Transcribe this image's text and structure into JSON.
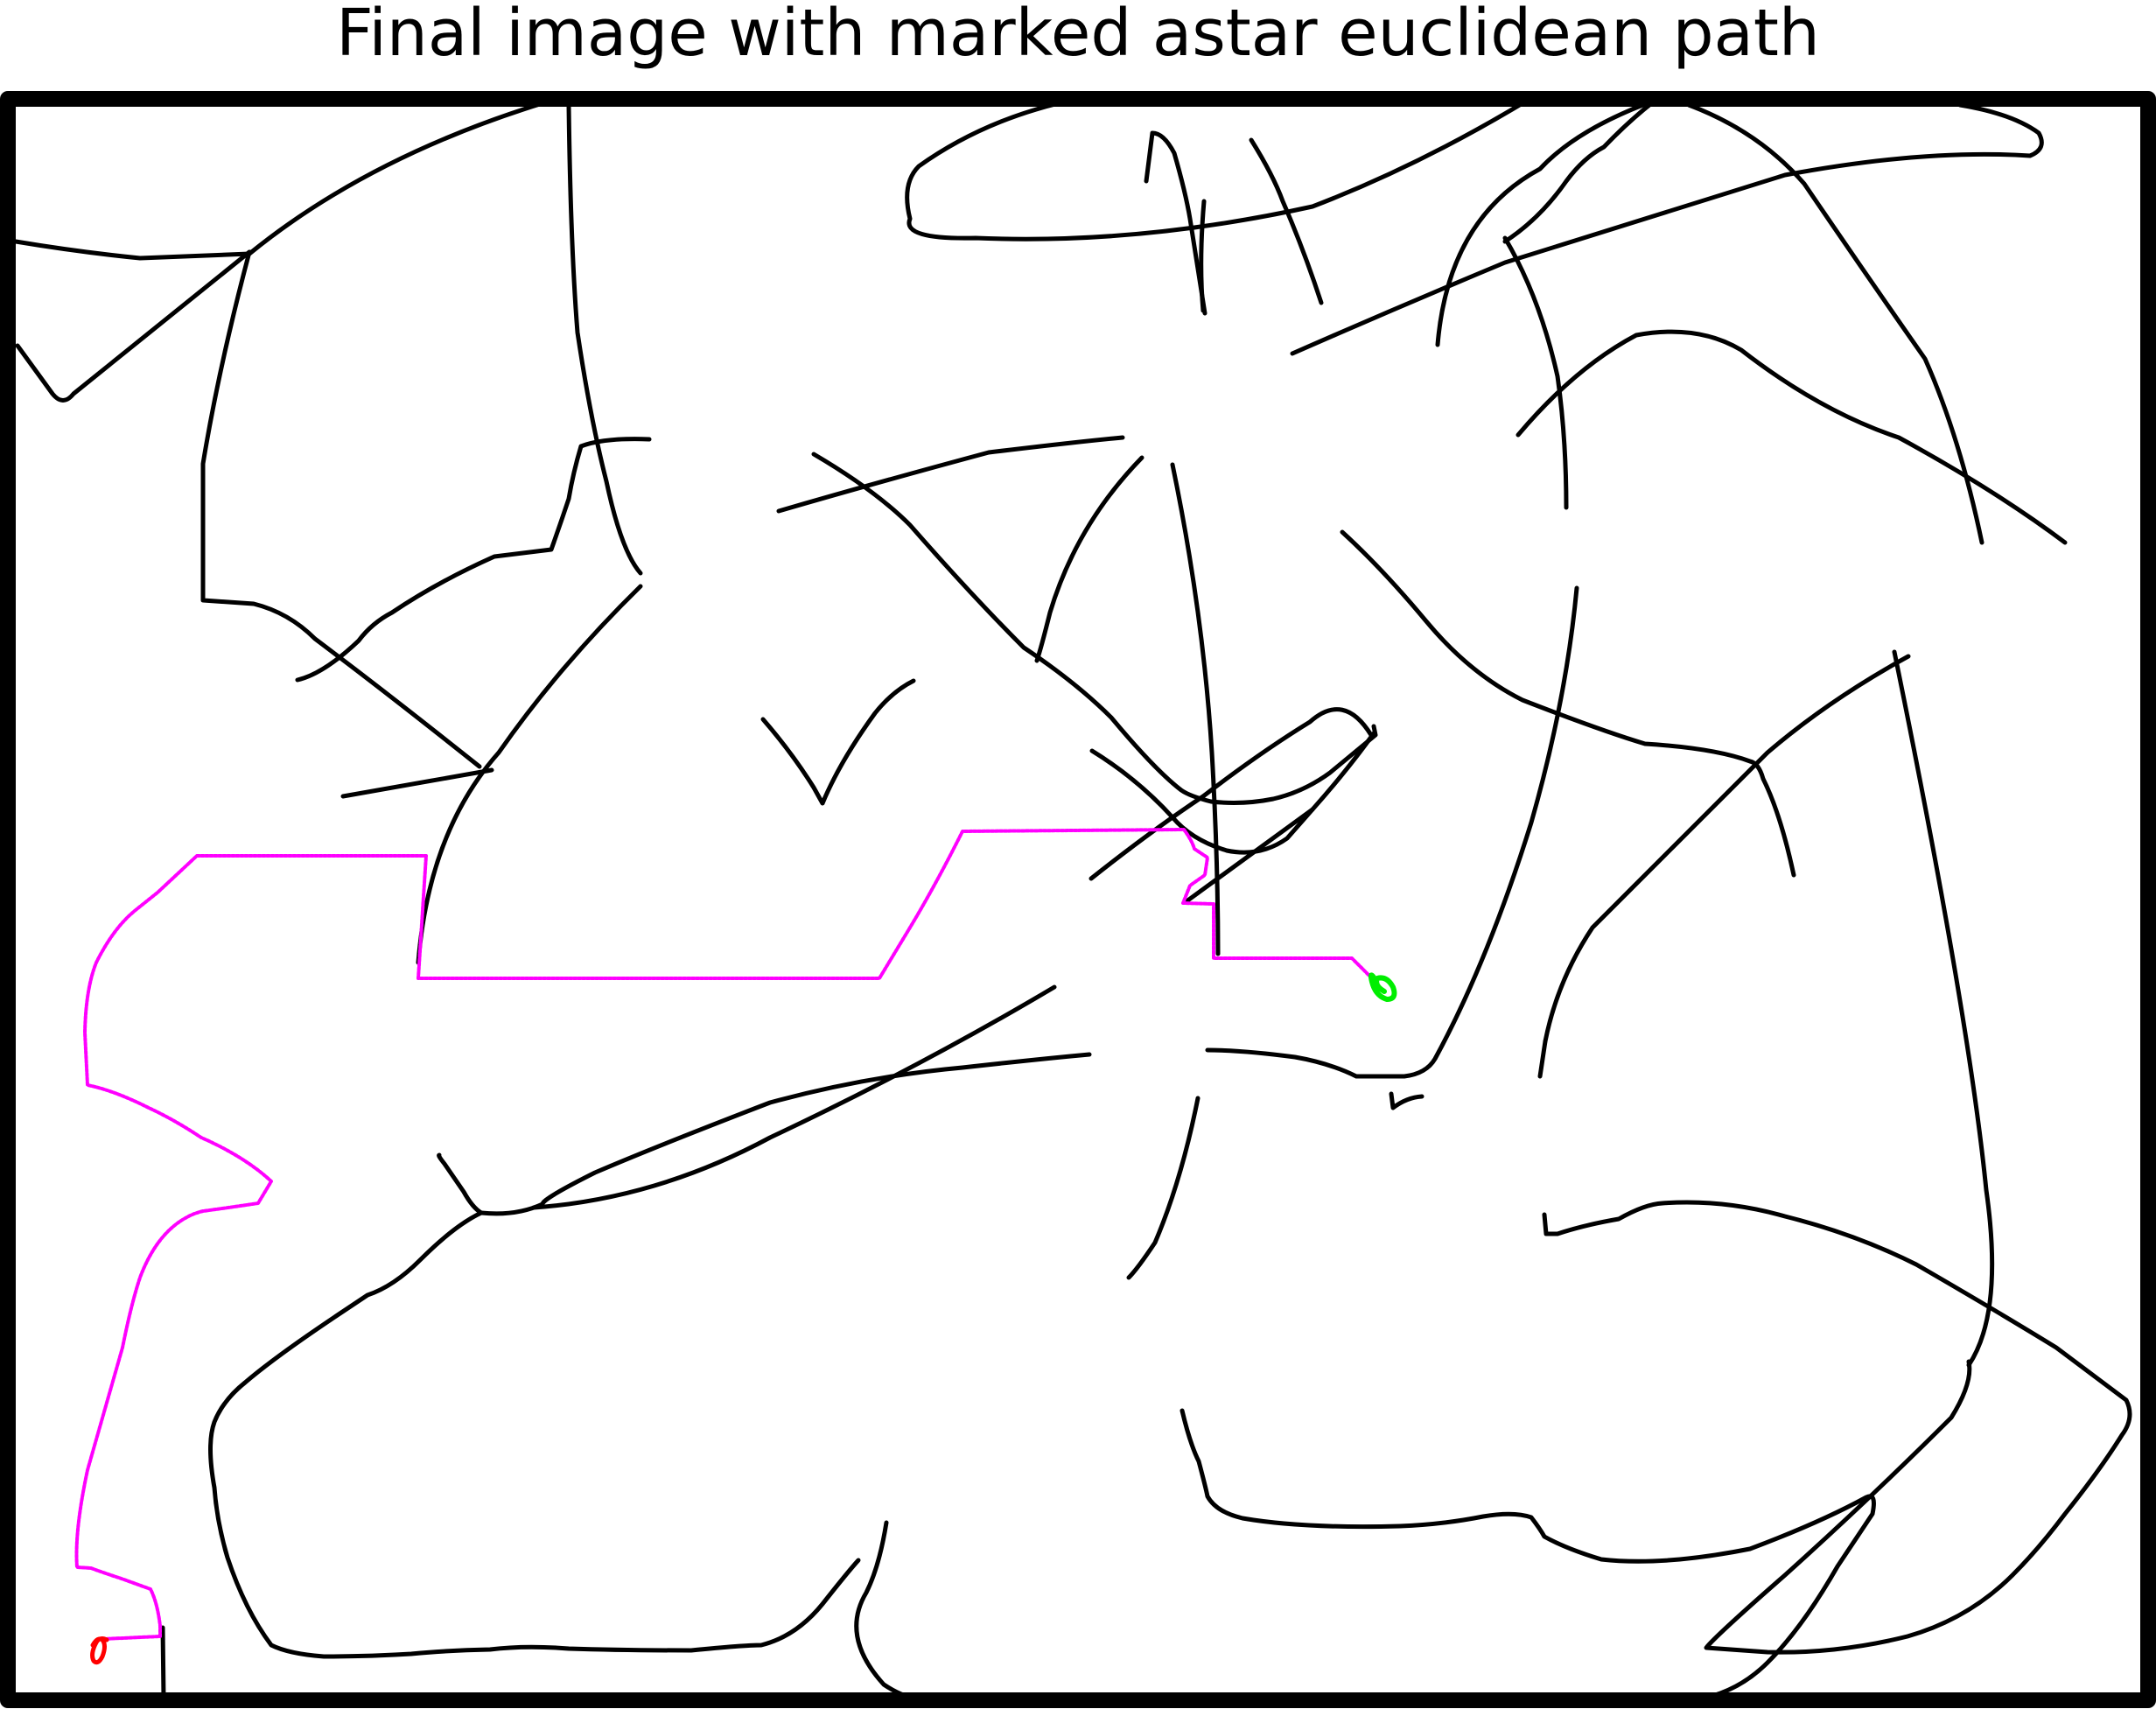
{
  "title": "Final image with marked astar euclidean path",
  "colors": {
    "background": "#ffffff",
    "obstacle": "#000000",
    "path": "#ff00ff",
    "start_marker": "#ff0000",
    "goal_marker": "#00ee00"
  }
}
